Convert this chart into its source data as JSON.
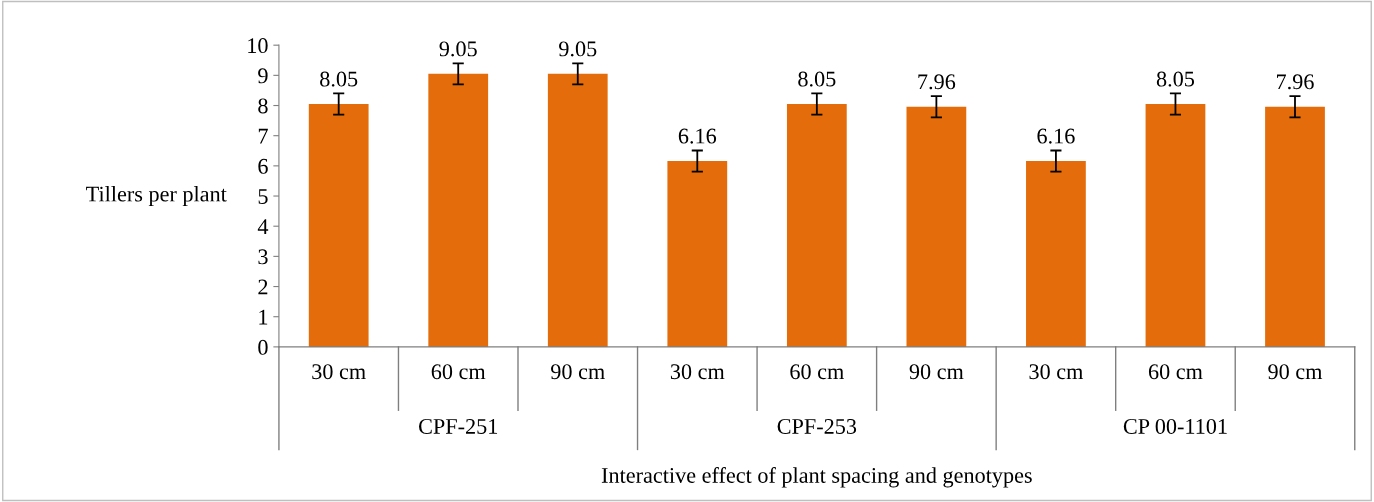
{
  "chart_data": {
    "type": "bar",
    "xlabel": "Interactive effect of plant spacing and genotypes",
    "ylabel": "Tillers per plant",
    "categories": [
      "30 cm",
      "60 cm",
      "90 cm",
      "30 cm",
      "60 cm",
      "90 cm",
      "30 cm",
      "60 cm",
      "90 cm"
    ],
    "values": [
      8.05,
      9.05,
      9.05,
      6.16,
      8.05,
      7.96,
      6.16,
      8.05,
      7.96
    ],
    "errors": [
      0.35,
      0.35,
      0.35,
      0.35,
      0.35,
      0.35,
      0.35,
      0.35,
      0.35
    ],
    "color": "#e46c0a",
    "ylim": [
      0,
      10
    ],
    "yticks": [
      0,
      1,
      2,
      3,
      4,
      5,
      6,
      7,
      8,
      9,
      10
    ],
    "grid": false,
    "data_labels": true,
    "annotations": [
      "CPF-251",
      "CPF-253",
      "CP 00-1101"
    ]
  }
}
